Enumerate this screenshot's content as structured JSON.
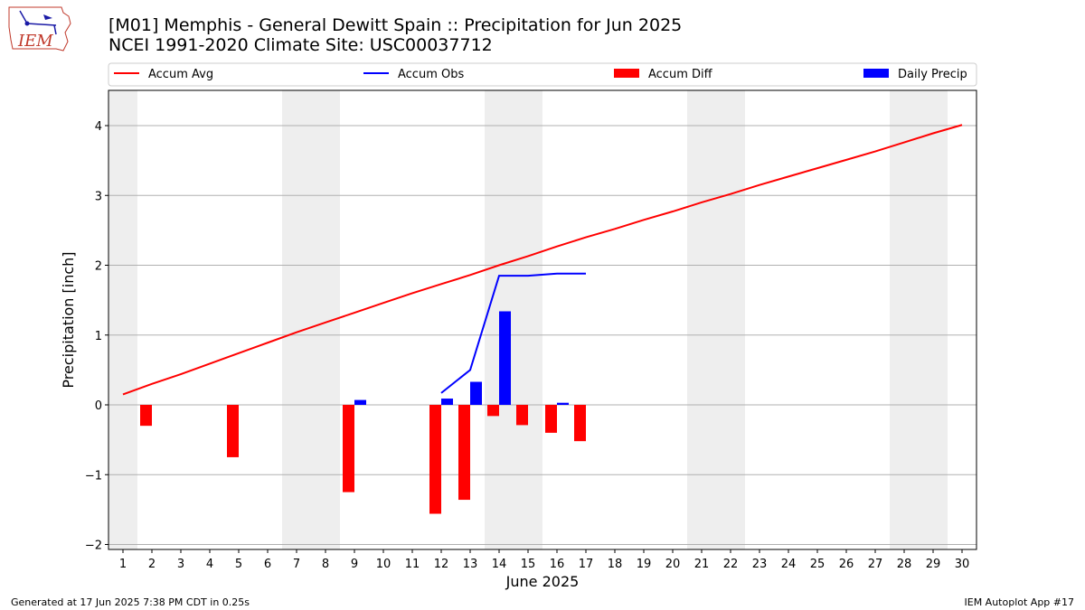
{
  "title_line1": "[M01] Memphis - General Dewitt Spain :: Precipitation for Jun 2025",
  "title_line2": "NCEI 1991-2020 Climate Site: USC00037712",
  "logo_text": "IEM",
  "footer_left": "Generated at 17 Jun 2025 7:38 PM CDT in 0.25s",
  "footer_right": "IEM Autoplot App #17",
  "chart_data": {
    "type": "line",
    "xlabel": "June 2025",
    "ylabel": "Precipitation [inch]",
    "ylim": [
      -2.05,
      4.5
    ],
    "yticks": [
      -2,
      -1,
      0,
      1,
      2,
      3,
      4
    ],
    "ytick_labels": [
      "−2",
      "−1",
      "0",
      "1",
      "2",
      "3",
      "4"
    ],
    "x": [
      1,
      2,
      3,
      4,
      5,
      6,
      7,
      8,
      9,
      10,
      11,
      12,
      13,
      14,
      15,
      16,
      17,
      18,
      19,
      20,
      21,
      22,
      23,
      24,
      25,
      26,
      27,
      28,
      29,
      30
    ],
    "weekend_days": [
      1,
      7,
      8,
      14,
      15,
      21,
      22,
      28,
      29
    ],
    "grid": "horizontal",
    "legend_position": "top",
    "series": [
      {
        "name": "Accum Avg",
        "kind": "line",
        "color": "#ff0000",
        "x": [
          1,
          2,
          3,
          4,
          5,
          6,
          7,
          8,
          9,
          10,
          11,
          12,
          13,
          14,
          15,
          16,
          17,
          18,
          19,
          20,
          21,
          22,
          23,
          24,
          25,
          26,
          27,
          28,
          29,
          30
        ],
        "values": [
          0.15,
          0.3,
          0.44,
          0.59,
          0.74,
          0.89,
          1.04,
          1.18,
          1.32,
          1.46,
          1.6,
          1.73,
          1.86,
          2.0,
          2.13,
          2.27,
          2.4,
          2.52,
          2.65,
          2.77,
          2.9,
          3.02,
          3.15,
          3.27,
          3.39,
          3.51,
          3.63,
          3.76,
          3.89,
          4.01
        ]
      },
      {
        "name": "Accum Obs",
        "kind": "line",
        "color": "#0000ff",
        "x": [
          12,
          13,
          14,
          15,
          16,
          17
        ],
        "values": [
          0.17,
          0.5,
          1.85,
          1.85,
          1.88,
          1.88
        ]
      },
      {
        "name": "Accum Diff",
        "kind": "bar",
        "color": "#ff0000",
        "x": [
          2,
          5,
          9,
          12,
          13,
          14,
          15,
          16,
          17
        ],
        "values": [
          -0.3,
          -0.75,
          -1.25,
          -1.56,
          -1.36,
          -0.16,
          -0.29,
          -0.4,
          -0.52
        ]
      },
      {
        "name": "Daily Precip",
        "kind": "bar",
        "color": "#0000ff",
        "x": [
          9,
          12,
          13,
          14,
          16
        ],
        "values": [
          0.07,
          0.09,
          0.33,
          1.34,
          0.03
        ]
      }
    ]
  }
}
